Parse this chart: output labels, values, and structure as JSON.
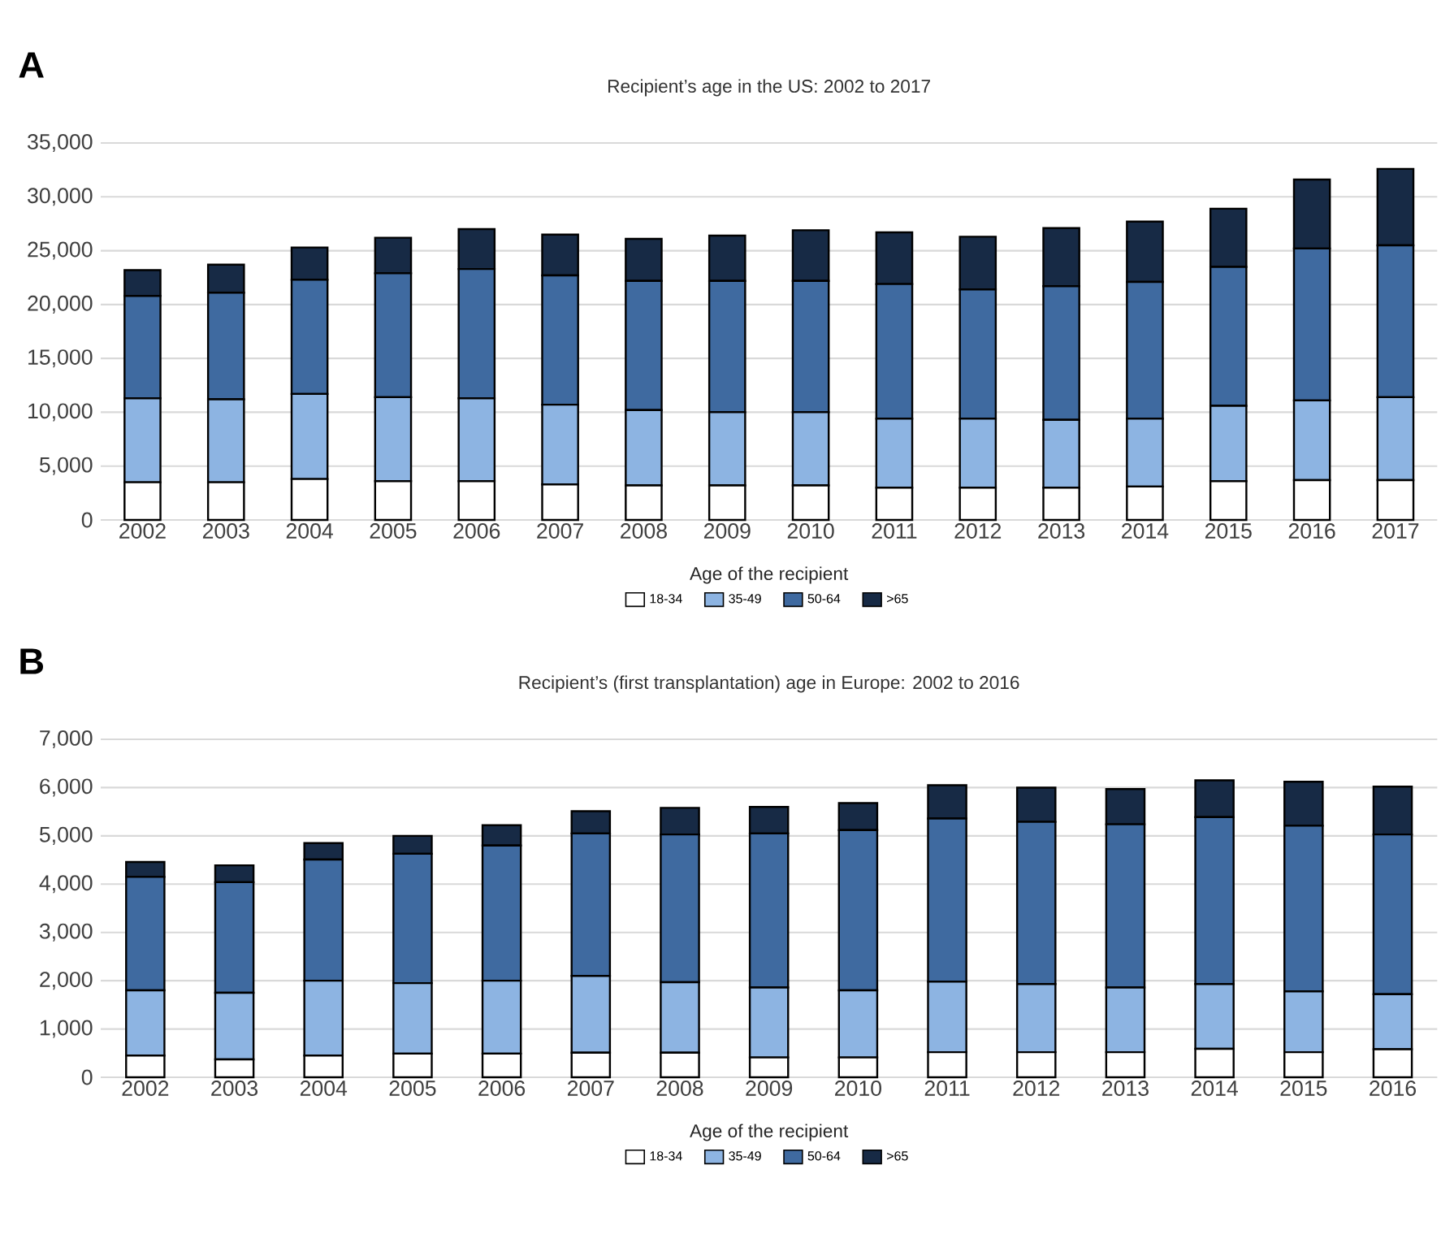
{
  "chart_data": [
    {
      "type": "bar",
      "stacked": true,
      "title": "Recipient’s age in the US: 2002 to 2017",
      "legend_title": "Age of the recipient",
      "legend": "bottom",
      "grid": "y",
      "annotations": [
        "A"
      ],
      "categories": [
        "2002",
        "2003",
        "2004",
        "2005",
        "2006",
        "2007",
        "2008",
        "2009",
        "2010",
        "2011",
        "2012",
        "2013",
        "2014",
        "2015",
        "2016",
        "2017"
      ],
      "ylim": [
        0,
        35000
      ],
      "yticks": [
        {
          "value": 0,
          "label": "0"
        },
        {
          "value": 5000,
          "label": "5,000"
        },
        {
          "value": 10000,
          "label": "10,000"
        },
        {
          "value": 15000,
          "label": "15,000"
        },
        {
          "value": 20000,
          "label": "20,000"
        },
        {
          "value": 25000,
          "label": "25,000"
        },
        {
          "value": 30000,
          "label": "30,000"
        },
        {
          "value": 35000,
          "label": "35,000"
        }
      ],
      "series": [
        {
          "name": "18-34",
          "color": "#ffffff",
          "values": [
            3500,
            3500,
            3800,
            3600,
            3600,
            3300,
            3200,
            3200,
            3200,
            3000,
            3000,
            3000,
            3100,
            3600,
            3700,
            3700
          ]
        },
        {
          "name": "35-49",
          "color": "#8db4e2",
          "values": [
            7800,
            7700,
            7900,
            7800,
            7700,
            7400,
            7000,
            6800,
            6800,
            6400,
            6400,
            6300,
            6300,
            7000,
            7400,
            7700
          ]
        },
        {
          "name": "50-64",
          "color": "#3f6aa0",
          "values": [
            9500,
            9900,
            10600,
            11500,
            12000,
            12000,
            12000,
            12200,
            12200,
            12500,
            12000,
            12400,
            12700,
            12900,
            14100,
            14100
          ]
        },
        {
          "name": ">65",
          "color": "#172a45",
          "values": [
            2400,
            2600,
            3000,
            3300,
            3700,
            3800,
            3900,
            4200,
            4700,
            4800,
            4900,
            5400,
            5600,
            5400,
            6400,
            7100
          ]
        }
      ]
    },
    {
      "type": "bar",
      "stacked": true,
      "title": "Recipient’s (first transplantation) age in Europe: 2002 to 2016",
      "legend_title": "Age of the recipient",
      "legend": "bottom",
      "grid": "y",
      "annotations": [
        "B"
      ],
      "categories": [
        "2002",
        "2003",
        "2004",
        "2005",
        "2006",
        "2007",
        "2008",
        "2009",
        "2010",
        "2011",
        "2012",
        "2013",
        "2014",
        "2015",
        "2016"
      ],
      "ylim": [
        0,
        7000
      ],
      "yticks": [
        {
          "value": 0,
          "label": "0"
        },
        {
          "value": 1000,
          "label": "1,000"
        },
        {
          "value": 2000,
          "label": "2,000"
        },
        {
          "value": 3000,
          "label": "3,000"
        },
        {
          "value": 4000,
          "label": "4,000"
        },
        {
          "value": 5000,
          "label": "5,000"
        },
        {
          "value": 6000,
          "label": "6,000"
        },
        {
          "value": 7000,
          "label": "7,000"
        }
      ],
      "series": [
        {
          "name": "18-34",
          "color": "#ffffff",
          "values": [
            450,
            370,
            450,
            490,
            490,
            510,
            510,
            410,
            410,
            520,
            520,
            520,
            590,
            520,
            580
          ]
        },
        {
          "name": "35-49",
          "color": "#8db4e2",
          "values": [
            1350,
            1380,
            1550,
            1460,
            1510,
            1590,
            1460,
            1450,
            1390,
            1460,
            1410,
            1340,
            1340,
            1260,
            1140
          ]
        },
        {
          "name": "50-64",
          "color": "#3f6aa0",
          "values": [
            2350,
            2290,
            2510,
            2680,
            2800,
            2950,
            3060,
            3190,
            3320,
            3380,
            3360,
            3380,
            3460,
            3430,
            3310
          ]
        },
        {
          "name": ">65",
          "color": "#172a45",
          "values": [
            310,
            350,
            340,
            370,
            420,
            460,
            550,
            550,
            560,
            690,
            710,
            730,
            760,
            910,
            990
          ]
        }
      ]
    }
  ]
}
